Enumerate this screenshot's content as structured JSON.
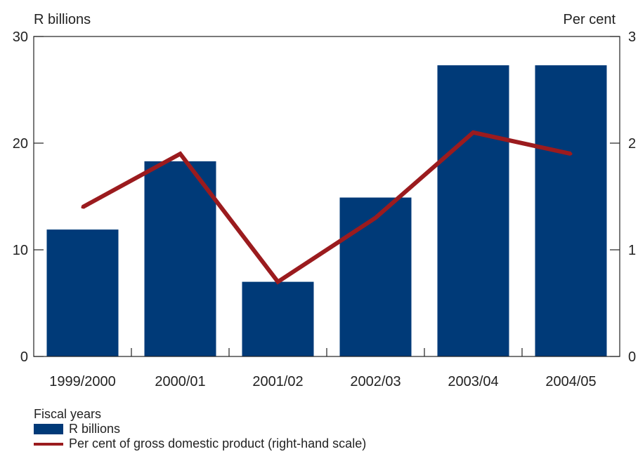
{
  "chart_data": {
    "type": "bar",
    "categories": [
      "1999/2000",
      "2000/01",
      "2001/02",
      "2002/03",
      "2003/04",
      "2004/05"
    ],
    "series": [
      {
        "name": "R billions",
        "axis": "left",
        "kind": "bar",
        "color": "#003a78",
        "values": [
          11.9,
          18.3,
          7.0,
          14.9,
          27.3,
          27.3
        ]
      },
      {
        "name": "Per cent of gross domestic product (right-hand scale)",
        "axis": "right",
        "kind": "line",
        "color": "#9b1b1e",
        "values": [
          1.4,
          1.9,
          0.7,
          1.3,
          2.1,
          1.9
        ]
      }
    ],
    "ylabel_left": "R billions",
    "ylabel_right": "Per cent",
    "xlabel": "Fiscal years",
    "ylim_left": [
      0,
      30
    ],
    "ylim_right": [
      0,
      3
    ],
    "yticks_left": [
      "0",
      "10",
      "20",
      "30"
    ],
    "yticks_right": [
      "0",
      "1",
      "2",
      "3"
    ],
    "grid": false,
    "legend": "bottom-left"
  }
}
